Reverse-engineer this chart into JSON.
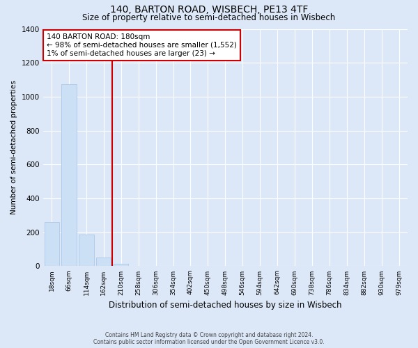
{
  "title": "140, BARTON ROAD, WISBECH, PE13 4TF",
  "subtitle": "Size of property relative to semi-detached houses in Wisbech",
  "xlabel": "Distribution of semi-detached houses by size in Wisbech",
  "ylabel": "Number of semi-detached properties",
  "footer1": "Contains HM Land Registry data © Crown copyright and database right 2024.",
  "footer2": "Contains public sector information licensed under the Open Government Licence v3.0.",
  "bar_labels": [
    "18sqm",
    "66sqm",
    "114sqm",
    "162sqm",
    "210sqm",
    "258sqm",
    "306sqm",
    "354sqm",
    "402sqm",
    "450sqm",
    "498sqm",
    "546sqm",
    "594sqm",
    "642sqm",
    "690sqm",
    "738sqm",
    "786sqm",
    "834sqm",
    "882sqm",
    "930sqm",
    "979sqm"
  ],
  "bar_values": [
    260,
    1075,
    185,
    50,
    15,
    2,
    1,
    0,
    0,
    0,
    0,
    0,
    0,
    0,
    0,
    0,
    0,
    0,
    0,
    0,
    0
  ],
  "bar_color": "#cce0f5",
  "bar_edge_color": "#aac8e8",
  "property_sqm": 180,
  "annotation_text1": "140 BARTON ROAD: 180sqm",
  "annotation_text2": "← 98% of semi-detached houses are smaller (1,552)",
  "annotation_text3": "1% of semi-detached houses are larger (23) →",
  "annotation_box_color": "#ffffff",
  "annotation_box_edge": "#cc0000",
  "line_color": "#cc0000",
  "ylim": [
    0,
    1400
  ],
  "yticks": [
    0,
    200,
    400,
    600,
    800,
    1000,
    1200,
    1400
  ],
  "background_color": "#dce8f8",
  "plot_bg_color": "#dce8f8",
  "grid_color": "#ffffff",
  "title_fontsize": 10,
  "subtitle_fontsize": 8.5,
  "xlabel_fontsize": 8.5,
  "ylabel_fontsize": 7.5
}
